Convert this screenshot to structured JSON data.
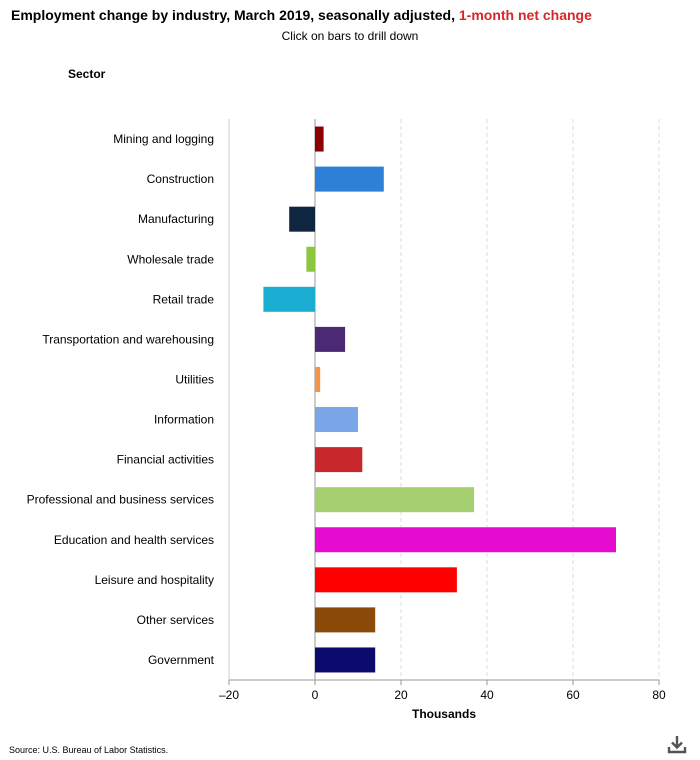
{
  "header": {
    "title": "Employment change by industry, March 2019, seasonally adjusted, ",
    "title_highlight": "1-month net change",
    "subtitle": "Click on bars to drill down",
    "sector_label": "Sector"
  },
  "footer": {
    "source": "Source: U.S. Bureau of Labor Statistics."
  },
  "icons": {
    "download": "download-icon"
  },
  "colors": {
    "highlight": "#d62728",
    "axis": "#999999",
    "grid": "#dddddd"
  },
  "chart_data": {
    "type": "bar",
    "orientation": "horizontal",
    "title": "Employment change by industry, March 2019, seasonally adjusted, 1-month net change",
    "xlabel": "Thousands",
    "ylabel": "Sector",
    "xlim": [
      -20,
      80
    ],
    "xticks": [
      -20,
      0,
      20,
      40,
      60,
      80
    ],
    "xtick_labels": [
      "–20",
      "0",
      "20",
      "40",
      "60",
      "80"
    ],
    "grid": "vertical dashed",
    "categories": [
      "Mining and logging",
      "Construction",
      "Manufacturing",
      "Wholesale trade",
      "Retail trade",
      "Transportation and warehousing",
      "Utilities",
      "Information",
      "Financial activities",
      "Professional and business services",
      "Education and health services",
      "Leisure and hospitality",
      "Other services",
      "Government"
    ],
    "values": [
      2,
      16,
      -6,
      -2,
      -12,
      7,
      1.2,
      10,
      11,
      37,
      70,
      33,
      14,
      14
    ],
    "colors": [
      "#8b0000",
      "#2e7fd6",
      "#102640",
      "#8cc63e",
      "#19aed1",
      "#4b2a73",
      "#f39448",
      "#7aa6e8",
      "#c8282c",
      "#a6cf6f",
      "#e60ccf",
      "#ff0000",
      "#8b4a0a",
      "#0b0b6e"
    ]
  }
}
